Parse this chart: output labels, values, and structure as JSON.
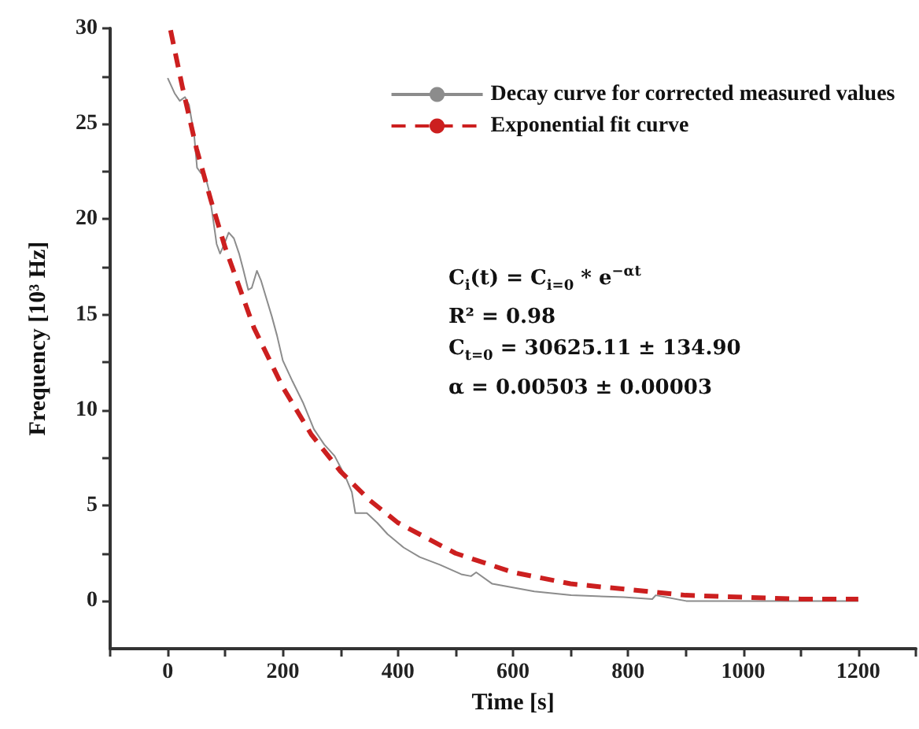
{
  "chart_data": {
    "type": "line",
    "xlabel": "Time [s]",
    "ylabel": "Frequency [10³ Hz]",
    "xlim": [
      -100,
      1300
    ],
    "ylim": [
      -2.5,
      30
    ],
    "xticks": [
      {
        "value": -100,
        "label": null
      },
      0,
      {
        "value": 100,
        "label": null
      },
      200,
      {
        "value": 300,
        "label": null
      },
      400,
      {
        "value": 500,
        "label": null
      },
      600,
      {
        "value": 700,
        "label": null
      },
      800,
      {
        "value": 900,
        "label": null
      },
      1000,
      {
        "value": 1100,
        "label": null
      },
      1200,
      {
        "value": 1300,
        "label": null
      }
    ],
    "yticks": [
      0,
      {
        "value": 2.5,
        "label": null
      },
      5,
      {
        "value": 7.5,
        "label": null
      },
      10,
      {
        "value": 12.5,
        "label": null
      },
      15,
      {
        "value": 17.5,
        "label": null
      },
      20,
      {
        "value": 22.5,
        "label": null
      },
      25,
      {
        "value": 27.5,
        "label": null
      },
      30
    ],
    "grid": false,
    "legend": "top right",
    "marker": "none",
    "series": [
      {
        "name": "Decay curve for corrected measured values",
        "color": "#8c8c8c",
        "line_style": "solid",
        "x": [
          0,
          12,
          21,
          30,
          37,
          46,
          51,
          58,
          64,
          71,
          78,
          85,
          91,
          97,
          106,
          115,
          124,
          131,
          140,
          146,
          155,
          162,
          173,
          181,
          190,
          200,
          217,
          235,
          254,
          272,
          290,
          309,
          320,
          326,
          346,
          364,
          382,
          410,
          438,
          473,
          510,
          527,
          536,
          564,
          637,
          701,
          792,
          842,
          848,
          901,
          1001,
          1100,
          1200
        ],
        "values": [
          27.4,
          26.6,
          26.2,
          26.4,
          26.0,
          24.4,
          22.7,
          22.4,
          22.4,
          21.6,
          20.2,
          18.7,
          18.2,
          18.6,
          19.3,
          19.0,
          18.2,
          17.4,
          16.3,
          16.4,
          17.3,
          16.8,
          15.7,
          14.9,
          13.9,
          12.6,
          11.5,
          10.4,
          9.0,
          8.2,
          7.6,
          6.5,
          5.7,
          4.6,
          4.6,
          4.1,
          3.5,
          2.8,
          2.3,
          1.9,
          1.4,
          1.3,
          1.5,
          0.9,
          0.5,
          0.3,
          0.2,
          0.1,
          0.3,
          0.0,
          0.0,
          0.0,
          0.0
        ]
      },
      {
        "name": "Exponential fit curve",
        "color": "#cc1f1f",
        "line_style": "dashed",
        "x": [
          5,
          25,
          50,
          75,
          100,
          150,
          200,
          250,
          300,
          350,
          400,
          500,
          600,
          700,
          800,
          900,
          1000,
          1100,
          1200
        ],
        "values": [
          29.9,
          27.0,
          23.7,
          21.0,
          18.5,
          14.3,
          11.2,
          8.7,
          6.8,
          5.3,
          4.1,
          2.5,
          1.5,
          0.9,
          0.6,
          0.3,
          0.2,
          0.1,
          0.1
        ]
      }
    ],
    "annotations": [
      "C$_{i}$(t) = C$_{i=0}$ * e$^{−αt}$",
      "R² = 0.98",
      "C$_{t=0}$ = 30625.11 ± 134.90",
      "α = 0.00503 ± 0.00003"
    ]
  }
}
